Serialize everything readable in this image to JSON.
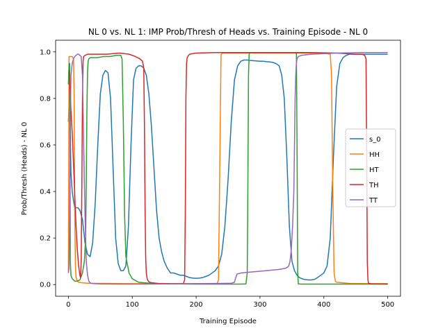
{
  "chart_data": {
    "type": "line",
    "title": "NL 0 vs. NL 1: IMP Prob/Thresh of Heads vs. Training Episode - NL 0",
    "xlabel": "Training Episode",
    "ylabel": "Prob/Thresh (Heads) - NL 0",
    "xlim": [
      -20,
      520
    ],
    "ylim": [
      -0.05,
      1.05
    ],
    "xticks": [
      0,
      100,
      200,
      300,
      400,
      500
    ],
    "yticks": [
      0.0,
      0.2,
      0.4,
      0.6,
      0.8,
      1.0
    ],
    "legend_position": "right",
    "grid": false,
    "series": [
      {
        "name": "s_0",
        "color": "#1f77b4",
        "x": [
          0,
          2,
          4,
          6,
          8,
          10,
          12,
          15,
          18,
          22,
          26,
          30,
          34,
          38,
          42,
          46,
          50,
          54,
          58,
          62,
          66,
          70,
          74,
          78,
          82,
          86,
          90,
          94,
          98,
          102,
          106,
          110,
          114,
          118,
          122,
          126,
          130,
          134,
          138,
          142,
          146,
          150,
          155,
          160,
          165,
          170,
          175,
          180,
          185,
          190,
          195,
          200,
          205,
          210,
          215,
          220,
          225,
          230,
          235,
          240,
          245,
          250,
          255,
          260,
          265,
          270,
          275,
          280,
          285,
          290,
          295,
          300,
          305,
          310,
          315,
          320,
          325,
          330,
          334,
          338,
          342,
          346,
          350,
          354,
          358,
          362,
          366,
          370,
          375,
          380,
          385,
          390,
          395,
          400,
          405,
          410,
          415,
          420,
          425,
          430,
          435,
          440,
          445,
          450,
          455,
          460,
          465,
          470,
          480,
          490,
          500
        ],
        "y": [
          0.7,
          0.84,
          0.48,
          0.4,
          0.36,
          0.33,
          0.33,
          0.33,
          0.32,
          0.28,
          0.18,
          0.13,
          0.12,
          0.18,
          0.35,
          0.6,
          0.82,
          0.9,
          0.92,
          0.91,
          0.8,
          0.5,
          0.2,
          0.09,
          0.06,
          0.06,
          0.08,
          0.25,
          0.6,
          0.88,
          0.93,
          0.94,
          0.94,
          0.93,
          0.9,
          0.82,
          0.68,
          0.5,
          0.32,
          0.2,
          0.14,
          0.1,
          0.07,
          0.05,
          0.05,
          0.045,
          0.04,
          0.04,
          0.035,
          0.03,
          0.028,
          0.027,
          0.028,
          0.03,
          0.035,
          0.04,
          0.05,
          0.06,
          0.08,
          0.13,
          0.25,
          0.45,
          0.7,
          0.88,
          0.94,
          0.96,
          0.965,
          0.965,
          0.963,
          0.962,
          0.961,
          0.96,
          0.96,
          0.958,
          0.957,
          0.955,
          0.95,
          0.94,
          0.9,
          0.8,
          0.55,
          0.25,
          0.1,
          0.06,
          0.04,
          0.03,
          0.025,
          0.022,
          0.02,
          0.02,
          0.022,
          0.03,
          0.04,
          0.05,
          0.08,
          0.2,
          0.55,
          0.85,
          0.95,
          0.975,
          0.985,
          0.99,
          0.99,
          0.99,
          0.99,
          0.99,
          0.99,
          0.99,
          0.99,
          0.99,
          0.99
        ]
      },
      {
        "name": "HH",
        "color": "#ff7f0e",
        "x": [
          0,
          1,
          2,
          4,
          6,
          8,
          9,
          10,
          11,
          12,
          14,
          16,
          20,
          30,
          50,
          100,
          150,
          200,
          230,
          233,
          235,
          237,
          239,
          242,
          260,
          300,
          350,
          400,
          410,
          412,
          414,
          416,
          418,
          420,
          440,
          470,
          500
        ],
        "y": [
          0.05,
          0.98,
          0.98,
          0.98,
          0.98,
          0.97,
          0.8,
          0.3,
          0.08,
          0.03,
          0.015,
          0.01,
          0.008,
          0.006,
          0.005,
          0.004,
          0.004,
          0.004,
          0.004,
          0.005,
          0.02,
          0.5,
          0.99,
          0.995,
          0.995,
          0.995,
          0.995,
          0.995,
          0.99,
          0.9,
          0.4,
          0.05,
          0.015,
          0.01,
          0.005,
          0.004,
          0.004
        ]
      },
      {
        "name": "HT",
        "color": "#2ca02c",
        "x": [
          0,
          1,
          2,
          3,
          4,
          6,
          8,
          10,
          14,
          18,
          22,
          25,
          27,
          28,
          29,
          30,
          31,
          32,
          34,
          38,
          45,
          55,
          65,
          75,
          80,
          82,
          84,
          86,
          88,
          90,
          95,
          100,
          110,
          130,
          160,
          200,
          240,
          270,
          278,
          280,
          281,
          282,
          283,
          284,
          286,
          300,
          330,
          350,
          355,
          357,
          358,
          359,
          360,
          365,
          400,
          450,
          500
        ],
        "y": [
          0.86,
          0.95,
          0.95,
          0.1,
          0.04,
          0.025,
          0.02,
          0.015,
          0.015,
          0.02,
          0.05,
          0.1,
          0.2,
          0.45,
          0.75,
          0.92,
          0.96,
          0.97,
          0.975,
          0.975,
          0.975,
          0.98,
          0.98,
          0.985,
          0.985,
          0.985,
          0.97,
          0.7,
          0.3,
          0.12,
          0.05,
          0.025,
          0.01,
          0.005,
          0.003,
          0.002,
          0.002,
          0.002,
          0.003,
          0.05,
          0.4,
          0.9,
          0.99,
          0.995,
          0.997,
          0.997,
          0.997,
          0.997,
          0.997,
          0.997,
          0.6,
          0.05,
          0.003,
          0.002,
          0.002,
          0.002,
          0.002
        ]
      },
      {
        "name": "TH",
        "color": "#d62728",
        "x": [
          0,
          1,
          2,
          3,
          4,
          6,
          8,
          10,
          12,
          14,
          16,
          18,
          19,
          20,
          21,
          22,
          23,
          24,
          26,
          30,
          40,
          60,
          80,
          95,
          105,
          112,
          116,
          118,
          119,
          120,
          121,
          122,
          123,
          124,
          126,
          130,
          140,
          160,
          180,
          182,
          183,
          184,
          185,
          186,
          188,
          190,
          200,
          230,
          260,
          300,
          340,
          380,
          420,
          450,
          460,
          464,
          466,
          467,
          468,
          469,
          470,
          475,
          500
        ],
        "y": [
          0.92,
          0.92,
          0.88,
          0.82,
          0.75,
          0.65,
          0.52,
          0.38,
          0.25,
          0.15,
          0.08,
          0.04,
          0.03,
          0.1,
          0.4,
          0.8,
          0.96,
          0.98,
          0.985,
          0.99,
          0.99,
          0.99,
          0.995,
          0.99,
          0.98,
          0.97,
          0.96,
          0.93,
          0.7,
          0.35,
          0.12,
          0.05,
          0.03,
          0.02,
          0.012,
          0.008,
          0.005,
          0.004,
          0.004,
          0.02,
          0.3,
          0.8,
          0.95,
          0.975,
          0.985,
          0.99,
          0.995,
          0.997,
          0.997,
          0.997,
          0.997,
          0.997,
          0.995,
          0.99,
          0.99,
          0.985,
          0.97,
          0.6,
          0.1,
          0.02,
          0.005,
          0.003,
          0.002
        ]
      },
      {
        "name": "TT",
        "color": "#9467bd",
        "x": [
          0,
          1,
          2,
          3,
          4,
          6,
          8,
          10,
          12,
          14,
          16,
          18,
          20,
          22,
          24,
          26,
          28,
          30,
          32,
          34,
          36,
          40,
          50,
          80,
          120,
          160,
          200,
          240,
          255,
          260,
          262,
          264,
          270,
          290,
          310,
          330,
          340,
          343,
          345,
          347,
          349,
          351,
          353,
          354,
          355,
          356,
          357,
          358,
          360,
          365,
          380,
          420,
          460,
          500
        ],
        "y": [
          0.05,
          0.07,
          0.3,
          0.7,
          0.9,
          0.95,
          0.97,
          0.98,
          0.985,
          0.99,
          0.99,
          0.985,
          0.98,
          0.9,
          0.6,
          0.3,
          0.1,
          0.04,
          0.015,
          0.008,
          0.005,
          0.004,
          0.003,
          0.002,
          0.002,
          0.003,
          0.004,
          0.005,
          0.006,
          0.01,
          0.03,
          0.045,
          0.05,
          0.055,
          0.06,
          0.065,
          0.07,
          0.075,
          0.08,
          0.1,
          0.15,
          0.25,
          0.4,
          0.6,
          0.8,
          0.9,
          0.95,
          0.97,
          0.98,
          0.985,
          0.99,
          0.995,
          0.997,
          0.997
        ]
      }
    ]
  }
}
